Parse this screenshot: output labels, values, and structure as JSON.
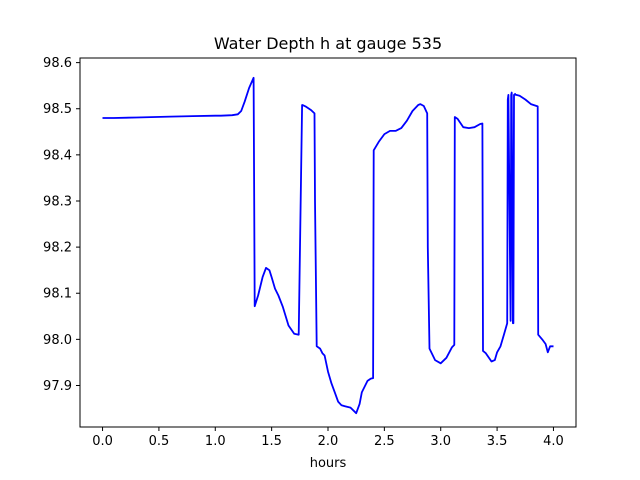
{
  "chart_data": {
    "type": "line",
    "title": "Water Depth h at gauge 535",
    "xlabel": "hours",
    "ylabel": "",
    "xlim": [
      -0.2,
      4.2
    ],
    "ylim": [
      97.81,
      98.61
    ],
    "grid": false,
    "x_ticks": [
      0.0,
      0.5,
      1.0,
      1.5,
      2.0,
      2.5,
      3.0,
      3.5,
      4.0
    ],
    "x_tick_labels": [
      "0.0",
      "0.5",
      "1.0",
      "1.5",
      "2.0",
      "2.5",
      "3.0",
      "3.5",
      "4.0"
    ],
    "y_ticks": [
      97.9,
      98.0,
      98.1,
      98.2,
      98.3,
      98.4,
      98.5,
      98.6
    ],
    "y_tick_labels": [
      "97.9",
      "98.0",
      "98.1",
      "98.2",
      "98.3",
      "98.4",
      "98.5",
      "98.6"
    ],
    "series": [
      {
        "color": "#0000ff",
        "x": [
          0.0,
          0.1,
          0.3,
          0.6,
          0.8,
          1.0,
          1.05,
          1.15,
          1.2,
          1.23,
          1.26,
          1.3,
          1.34,
          1.345,
          1.35,
          1.38,
          1.42,
          1.45,
          1.48,
          1.5,
          1.53,
          1.56,
          1.6,
          1.65,
          1.7,
          1.74,
          1.77,
          1.775,
          1.8,
          1.85,
          1.88,
          1.885,
          1.9,
          1.93,
          1.95,
          1.97,
          2.0,
          2.03,
          2.06,
          2.09,
          2.12,
          2.15,
          2.2,
          2.25,
          2.28,
          2.3,
          2.35,
          2.38,
          2.4,
          2.405,
          2.45,
          2.5,
          2.55,
          2.6,
          2.65,
          2.7,
          2.75,
          2.8,
          2.82,
          2.85,
          2.88,
          2.885,
          2.9,
          2.95,
          3.0,
          3.05,
          3.1,
          3.12,
          3.125,
          3.15,
          3.2,
          3.25,
          3.3,
          3.35,
          3.37,
          3.375,
          3.4,
          3.45,
          3.48,
          3.5,
          3.53,
          3.56,
          3.59,
          3.595,
          3.6,
          3.62,
          3.625,
          3.63,
          3.64,
          3.645,
          3.65,
          3.66,
          3.665,
          3.67,
          3.7,
          3.75,
          3.8,
          3.86,
          3.865,
          3.9,
          3.93,
          3.95,
          3.97,
          4.0
        ],
        "y": [
          98.48,
          98.48,
          98.481,
          98.483,
          98.484,
          98.485,
          98.485,
          98.486,
          98.488,
          98.495,
          98.515,
          98.545,
          98.567,
          98.3,
          98.072,
          98.095,
          98.135,
          98.155,
          98.15,
          98.135,
          98.11,
          98.095,
          98.07,
          98.03,
          98.012,
          98.01,
          98.508,
          98.508,
          98.505,
          98.497,
          98.49,
          98.3,
          97.985,
          97.98,
          97.97,
          97.965,
          97.93,
          97.905,
          97.885,
          97.865,
          97.857,
          97.855,
          97.852,
          97.84,
          97.86,
          97.885,
          97.91,
          97.915,
          97.916,
          98.41,
          98.428,
          98.445,
          98.452,
          98.452,
          98.458,
          98.474,
          98.495,
          98.508,
          98.51,
          98.506,
          98.49,
          98.2,
          97.98,
          97.955,
          97.948,
          97.96,
          97.983,
          97.988,
          98.482,
          98.478,
          98.46,
          98.458,
          98.46,
          98.467,
          98.468,
          97.975,
          97.97,
          97.952,
          97.955,
          97.972,
          97.985,
          98.01,
          98.035,
          98.52,
          98.53,
          98.04,
          98.53,
          98.535,
          98.035,
          98.035,
          98.53,
          98.532,
          98.53,
          98.53,
          98.528,
          98.52,
          98.51,
          98.505,
          98.01,
          98.0,
          97.99,
          97.972,
          97.985,
          97.985
        ]
      }
    ]
  }
}
